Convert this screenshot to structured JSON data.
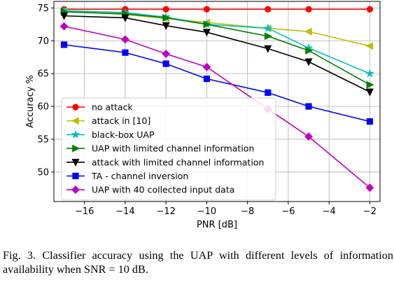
{
  "chart_data": {
    "type": "line",
    "xlabel": "PNR [dB]",
    "ylabel": "Accuracy %",
    "xlim": [
      -17.5,
      -1.5
    ],
    "ylim": [
      45.5,
      76
    ],
    "xticks": [
      -16,
      -14,
      -12,
      -10,
      -8,
      -6,
      -4,
      -2
    ],
    "xtick_labels": [
      "−16",
      "−14",
      "−12",
      "−10",
      "−8",
      "−6",
      "−4",
      "−2"
    ],
    "yticks": [
      50,
      55,
      60,
      65,
      70,
      75
    ],
    "ytick_labels": [
      "50",
      "55",
      "60",
      "65",
      "70",
      "75"
    ],
    "grid": true,
    "legend_position": "lower-left",
    "x": [
      -17,
      -14,
      -12,
      -10,
      -7,
      -5,
      -2
    ],
    "series": [
      {
        "name": "no attack",
        "color": "#ff0000",
        "marker": "circle",
        "values": [
          74.8,
          74.8,
          74.8,
          74.8,
          74.8,
          74.8,
          74.8
        ]
      },
      {
        "name": "attack in [10]",
        "color": "#bfbf00",
        "marker": "triangle-left",
        "values": [
          74.5,
          74.0,
          73.4,
          72.8,
          71.9,
          71.4,
          69.2
        ]
      },
      {
        "name": "black-box UAP",
        "color": "#00bfbf",
        "marker": "star",
        "values": [
          74.6,
          74.3,
          73.6,
          72.5,
          71.9,
          68.9,
          65.0
        ]
      },
      {
        "name": "UAP with limited channel information",
        "color": "#008000",
        "marker": "triangle-right",
        "values": [
          74.4,
          74.1,
          73.5,
          72.5,
          70.7,
          68.5,
          63.3
        ]
      },
      {
        "name": "attack with limited channel information",
        "color": "#000000",
        "marker": "triangle-down",
        "values": [
          73.8,
          73.5,
          72.3,
          71.3,
          68.8,
          66.8,
          62.2
        ]
      },
      {
        "name": "TA - channel inversion",
        "color": "#0000ff",
        "marker": "square",
        "values": [
          69.4,
          68.2,
          66.5,
          64.2,
          62.1,
          60.0,
          57.7
        ]
      },
      {
        "name": "UAP with 40 collected input data",
        "color": "#bf00bf",
        "marker": "diamond",
        "values": [
          72.2,
          70.2,
          68.0,
          66.0,
          59.6,
          55.4,
          47.6
        ]
      }
    ]
  },
  "caption": "Fig. 3.  Classifier accuracy using the UAP with different levels of information availability when SNR = 10 dB."
}
